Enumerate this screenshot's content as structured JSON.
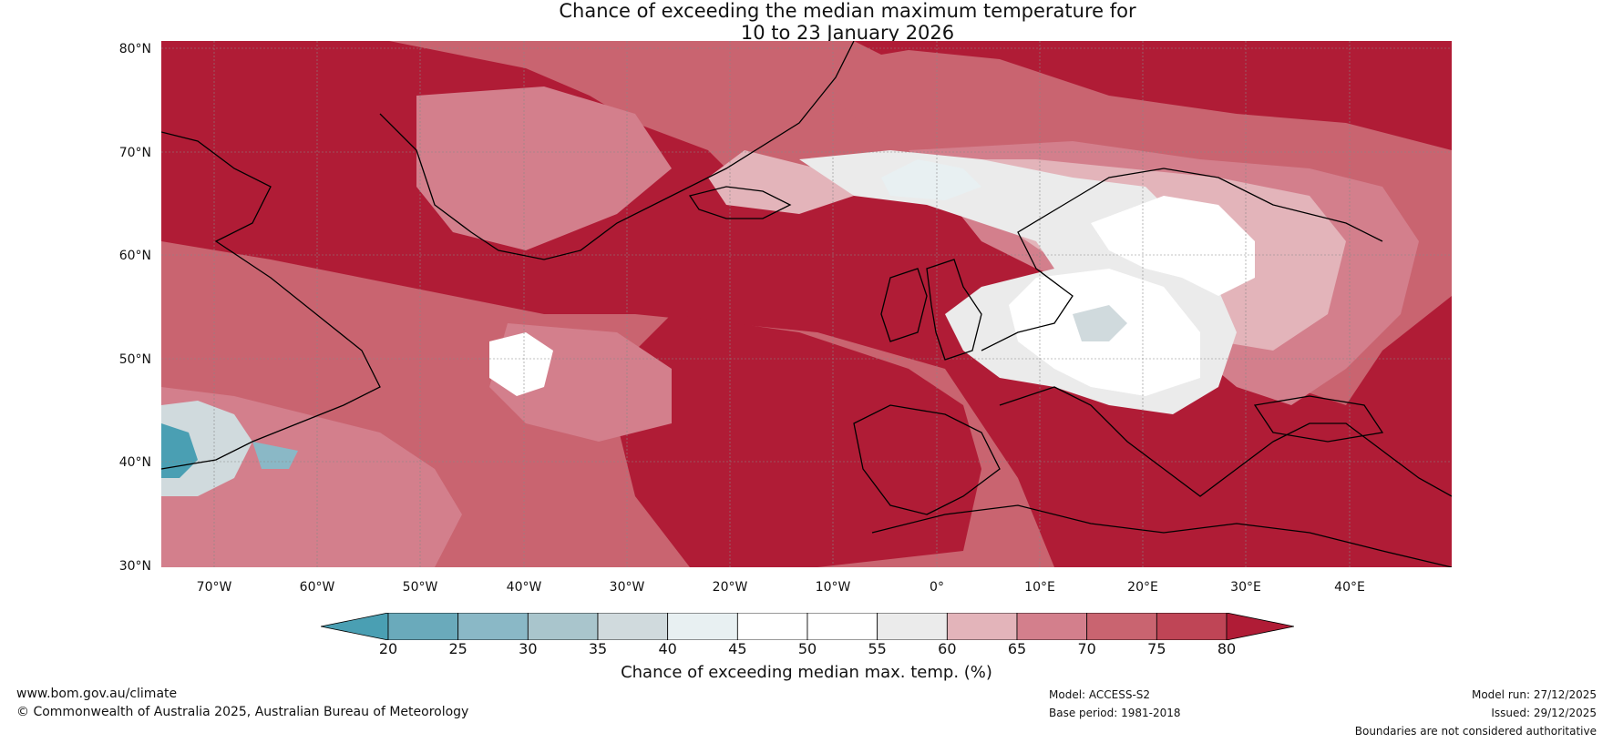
{
  "title": {
    "line1": "Chance of exceeding the median maximum temperature for",
    "line2": "10 to 23 January 2026"
  },
  "map": {
    "lat_labels": [
      "80°N",
      "70°N",
      "60°N",
      "50°N",
      "40°N",
      "30°N"
    ],
    "lon_labels": [
      "70°W",
      "60°W",
      "50°W",
      "40°W",
      "30°W",
      "20°W",
      "10°W",
      "0°",
      "10°E",
      "20°E",
      "30°E",
      "40°E"
    ],
    "region": "North Atlantic and Europe"
  },
  "colorbar": {
    "ticks": [
      "20",
      "25",
      "30",
      "35",
      "40",
      "45",
      "50",
      "55",
      "60",
      "65",
      "70",
      "75",
      "80"
    ],
    "colors": [
      "#4a9fb3",
      "#6aaabb",
      "#8ab8c6",
      "#a9c5cc",
      "#d0dadd",
      "#e8f0f2",
      "#ffffff",
      "#ffffff",
      "#ebebeb",
      "#e3b4ba",
      "#d37f8c",
      "#c96470",
      "#bf4556",
      "#b01c36"
    ],
    "label": "Chance of exceeding median max. temp. (%)"
  },
  "footer": {
    "website": "www.bom.gov.au/climate",
    "copyright": "© Commonwealth of Australia 2025, Australian Bureau of Meteorology",
    "model": "Model: ACCESS-S2",
    "base_period": "Base period: 1981-2018",
    "model_run": "Model run: 27/12/2025",
    "issued": "Issued: 29/12/2025",
    "boundaries": "Boundaries are not considered authoritative"
  }
}
